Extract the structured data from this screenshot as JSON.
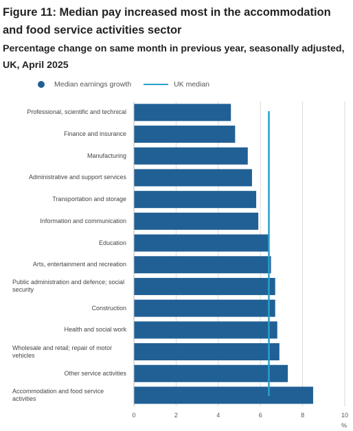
{
  "title": "Figure 11: Median pay increased most in the accommodation and food service activities sector",
  "subtitle": "Percentage change on same month in previous year, seasonally adjusted, UK, April 2025",
  "legend": {
    "bars": "Median earnings growth",
    "line": "UK median"
  },
  "colors": {
    "bar": "#206095",
    "median_line": "#27a0cc",
    "grid": "#d9d9d9"
  },
  "chart_data": {
    "type": "bar",
    "orientation": "horizontal",
    "categories": [
      "Professional, scientific and technical",
      "Finance and insurance",
      "Manufacturing",
      "Administrative and support services",
      "Transportation and storage",
      "Information and communication",
      "Education",
      "Arts, entertainment and recreation",
      "Public administration and defence; social security",
      "Construction",
      "Health and social work",
      "Wholesale and retail; repair of motor vehicles",
      "Other service activities",
      "Accommodation and food service activities"
    ],
    "series": [
      {
        "name": "Median earnings growth",
        "values": [
          4.6,
          4.8,
          5.4,
          5.6,
          5.8,
          5.9,
          6.4,
          6.5,
          6.7,
          6.7,
          6.8,
          6.9,
          7.3,
          8.5
        ]
      }
    ],
    "reference_line": {
      "name": "UK median",
      "value": 6.4
    },
    "xlim": [
      0,
      10
    ],
    "x_ticks": [
      "0",
      "2",
      "4",
      "6",
      "8",
      "10"
    ],
    "x_unit": "%",
    "grid": "vertical",
    "legend_position": "top-left"
  }
}
